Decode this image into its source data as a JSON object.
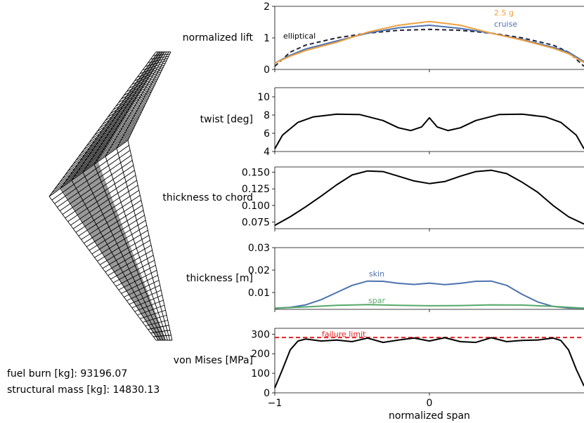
{
  "info": {
    "fuel_burn": "fuel burn [kg]: 93196.07",
    "structural_mass": "structural mass [kg]: 14830.13"
  },
  "colors": {
    "orange": "#f0a040",
    "blue": "#4c72b0",
    "green": "#55a868",
    "red": "#e32020",
    "black": "#000000",
    "mesh_fill": "#999999"
  },
  "chart_data": [
    {
      "type": "line",
      "ylabel": "normalized lift",
      "ylim": [
        0,
        2
      ],
      "yticks": [
        "0",
        "1",
        "2"
      ],
      "xlim": [
        -1,
        1
      ],
      "series": [
        {
          "name": "elliptical",
          "style": "dashed",
          "color": "#222233",
          "x": [
            -1,
            -0.9,
            -0.8,
            -0.6,
            -0.4,
            -0.2,
            0,
            0.2,
            0.4,
            0.6,
            0.8,
            0.9,
            1
          ],
          "y": [
            0.1,
            0.55,
            0.77,
            1.0,
            1.15,
            1.24,
            1.27,
            1.24,
            1.15,
            1.0,
            0.77,
            0.55,
            0.1
          ]
        },
        {
          "name": "cruise",
          "color": "#4c72b0",
          "x": [
            -1,
            -0.9,
            -0.8,
            -0.6,
            -0.4,
            -0.2,
            0,
            0.2,
            0.4,
            0.6,
            0.8,
            0.9,
            1
          ],
          "y": [
            0.2,
            0.45,
            0.65,
            0.9,
            1.15,
            1.32,
            1.4,
            1.3,
            1.15,
            0.95,
            0.7,
            0.55,
            0.25
          ]
        },
        {
          "name": "2.5 g",
          "color": "#f0a040",
          "x": [
            -1,
            -0.9,
            -0.8,
            -0.6,
            -0.4,
            -0.2,
            0,
            0.2,
            0.4,
            0.6,
            0.8,
            0.9,
            1
          ],
          "y": [
            0.2,
            0.42,
            0.6,
            0.86,
            1.18,
            1.4,
            1.52,
            1.4,
            1.15,
            0.93,
            0.67,
            0.5,
            0.22
          ]
        }
      ]
    },
    {
      "type": "line",
      "ylabel": "twist [deg]",
      "ylim": [
        4,
        11
      ],
      "yticks": [
        "4",
        "6",
        "8",
        "10"
      ],
      "xlim": [
        -1,
        1
      ],
      "series": [
        {
          "color": "#000000",
          "x": [
            -1,
            -0.95,
            -0.85,
            -0.75,
            -0.6,
            -0.45,
            -0.3,
            -0.2,
            -0.12,
            -0.05,
            0,
            0.05,
            0.12,
            0.2,
            0.3,
            0.45,
            0.6,
            0.75,
            0.85,
            0.95,
            1
          ],
          "y": [
            4.3,
            5.8,
            7.2,
            7.8,
            8.1,
            8.05,
            7.4,
            6.6,
            6.3,
            6.7,
            7.7,
            6.7,
            6.3,
            6.6,
            7.4,
            8.05,
            8.1,
            7.8,
            7.2,
            5.8,
            4.3
          ]
        }
      ]
    },
    {
      "type": "line",
      "ylabel": "thickness to chord",
      "ylim": [
        0.065,
        0.158
      ],
      "yticks": [
        "0.075",
        "0.100",
        "0.125",
        "0.150"
      ],
      "xlim": [
        -1,
        1
      ],
      "series": [
        {
          "color": "#000000",
          "x": [
            -1,
            -0.9,
            -0.8,
            -0.7,
            -0.6,
            -0.5,
            -0.4,
            -0.3,
            -0.2,
            -0.1,
            0,
            0.1,
            0.2,
            0.3,
            0.4,
            0.5,
            0.6,
            0.7,
            0.8,
            0.9,
            1
          ],
          "y": [
            0.07,
            0.083,
            0.098,
            0.114,
            0.131,
            0.146,
            0.152,
            0.151,
            0.144,
            0.137,
            0.133,
            0.136,
            0.144,
            0.151,
            0.153,
            0.148,
            0.135,
            0.12,
            0.1,
            0.083,
            0.072
          ]
        }
      ]
    },
    {
      "type": "line",
      "ylabel": "thickness [m]",
      "ylim": [
        0.0025,
        0.03
      ],
      "yticks": [
        "0.01",
        "0.02",
        "0.03"
      ],
      "xlim": [
        -1,
        1
      ],
      "series": [
        {
          "name": "skin",
          "color": "#4c72b0",
          "x": [
            -1,
            -0.9,
            -0.8,
            -0.7,
            -0.6,
            -0.5,
            -0.4,
            -0.3,
            -0.2,
            -0.1,
            0,
            0.1,
            0.2,
            0.3,
            0.4,
            0.5,
            0.6,
            0.7,
            0.8,
            0.9,
            1
          ],
          "y": [
            0.003,
            0.0034,
            0.0045,
            0.0068,
            0.01,
            0.0132,
            0.0151,
            0.015,
            0.0141,
            0.0136,
            0.0142,
            0.0135,
            0.0141,
            0.015,
            0.0151,
            0.0132,
            0.0092,
            0.0058,
            0.0038,
            0.0031,
            0.003
          ]
        },
        {
          "name": "spar",
          "color": "#55a868",
          "x": [
            -1,
            -0.8,
            -0.6,
            -0.4,
            -0.2,
            0,
            0.2,
            0.4,
            0.6,
            0.8,
            1
          ],
          "y": [
            0.003,
            0.0036,
            0.0043,
            0.0046,
            0.0043,
            0.0041,
            0.0042,
            0.0045,
            0.0044,
            0.0038,
            0.003
          ]
        }
      ]
    },
    {
      "type": "line",
      "ylabel": "von Mises [MPa]",
      "ylim": [
        0,
        330
      ],
      "yticks": [
        "0",
        "100",
        "200",
        "300"
      ],
      "xlim": [
        -1,
        1
      ],
      "xticks": [
        "−1",
        "0"
      ],
      "xlabel": "normalized span",
      "annotations": [
        {
          "text": "failure limit",
          "value": 283,
          "color": "#e32020"
        }
      ],
      "series": [
        {
          "name": "failure limit",
          "color": "#e32020",
          "style": "dashed",
          "x": [
            -1,
            1
          ],
          "y": [
            283,
            283
          ]
        },
        {
          "color": "#000000",
          "x": [
            -1,
            -0.95,
            -0.9,
            -0.85,
            -0.8,
            -0.7,
            -0.6,
            -0.5,
            -0.4,
            -0.3,
            -0.2,
            -0.1,
            0,
            0.1,
            0.2,
            0.3,
            0.4,
            0.5,
            0.6,
            0.7,
            0.8,
            0.85,
            0.9,
            0.95,
            1
          ],
          "y": [
            25,
            120,
            220,
            265,
            275,
            265,
            270,
            262,
            280,
            258,
            270,
            280,
            265,
            282,
            262,
            258,
            282,
            262,
            268,
            270,
            280,
            268,
            220,
            120,
            35
          ]
        }
      ]
    }
  ]
}
